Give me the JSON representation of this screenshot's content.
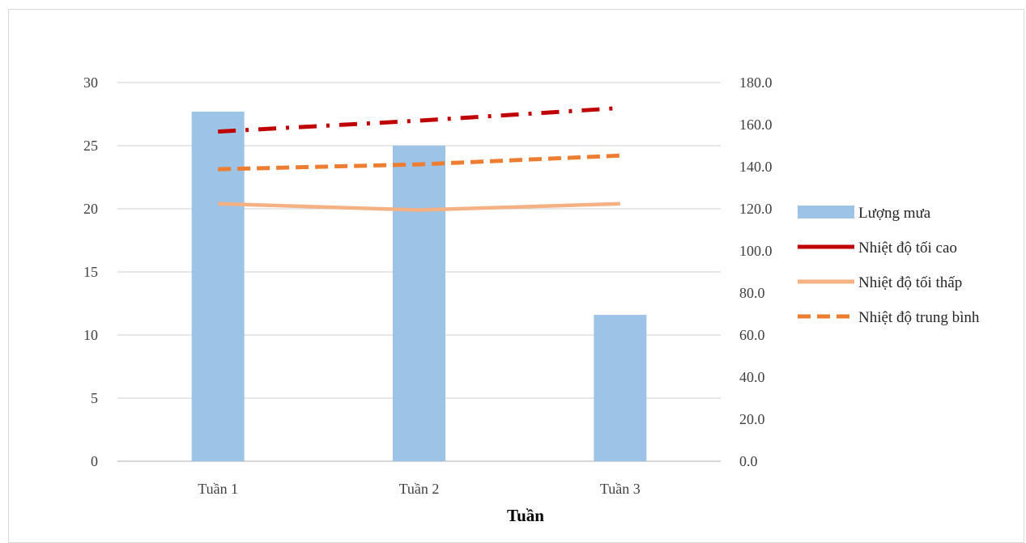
{
  "chart_data": {
    "type": "bar",
    "title": "",
    "xlabel": "Tuần",
    "categories": [
      "Tuần 1",
      "Tuần 2",
      "Tuần 3"
    ],
    "y_left": {
      "ylim": [
        0,
        30
      ],
      "ticks": [
        "0",
        "5",
        "10",
        "15",
        "20",
        "25",
        "30"
      ]
    },
    "y_right": {
      "ylim": [
        0,
        180
      ],
      "ticks": [
        "0.0",
        "20.0",
        "40.0",
        "60.0",
        "80.0",
        "100.0",
        "120.0",
        "140.0",
        "160.0",
        "180.0"
      ]
    },
    "grid": true,
    "legend_position": "right",
    "series": [
      {
        "name": "Lượng mưa",
        "type": "bar",
        "axis": "left",
        "values": [
          27.7,
          25.0,
          11.6
        ],
        "color": "#9dc3e6",
        "style": "solid"
      },
      {
        "name": "Nhiệt độ tối cao",
        "type": "line",
        "axis": "right",
        "values": [
          156.7,
          161.9,
          167.9
        ],
        "color": "#c00000",
        "style": "dash-dot"
      },
      {
        "name": "Nhiệt độ tối thấp",
        "type": "line",
        "axis": "right",
        "values": [
          122.4,
          119.4,
          122.4
        ],
        "color": "#f4b183",
        "style": "solid"
      },
      {
        "name": "Nhiệt độ trung bình",
        "type": "line",
        "axis": "right",
        "values": [
          138.8,
          141.1,
          145.3
        ],
        "color": "#ed7d31",
        "style": "dashed"
      }
    ]
  }
}
